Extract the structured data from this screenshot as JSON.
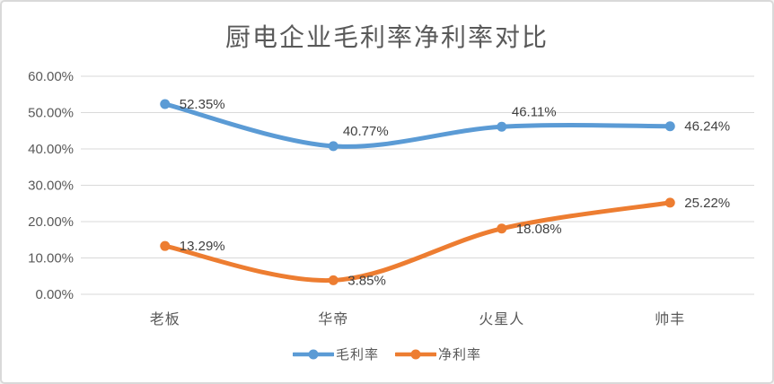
{
  "panel": {
    "background": "#ffffff",
    "border_color": "#d9d9d9"
  },
  "chart_data": {
    "type": "line",
    "title": "厨电企业毛利率净利率对比",
    "categories": [
      "老板",
      "华帝",
      "火星人",
      "帅丰"
    ],
    "series": [
      {
        "name": "毛利率",
        "color": "#5b9bd5",
        "values": [
          52.35,
          40.77,
          46.11,
          46.24
        ],
        "data_labels": [
          "52.35%",
          "40.77%",
          "46.11%",
          "46.24%"
        ],
        "label_placement": [
          "right",
          "above",
          "above",
          "right"
        ]
      },
      {
        "name": "净利率",
        "color": "#ed7d31",
        "values": [
          13.29,
          3.85,
          18.08,
          25.22
        ],
        "data_labels": [
          "13.29%",
          "3.85%",
          "18.08%",
          "25.22%"
        ],
        "label_placement": [
          "right",
          "right",
          "right",
          "right"
        ]
      }
    ],
    "xlabel": "",
    "ylabel": "",
    "ylim": [
      0,
      60
    ],
    "ytick_step": 10,
    "ytick_labels": [
      "0.00%",
      "10.00%",
      "20.00%",
      "30.00%",
      "40.00%",
      "50.00%",
      "60.00%"
    ],
    "grid": true,
    "smooth": true,
    "legend_position": "bottom",
    "gridline_color": "#d9d9d9",
    "title_color": "#595959",
    "axis_label_color": "#595959",
    "data_label_color": "#404040"
  }
}
